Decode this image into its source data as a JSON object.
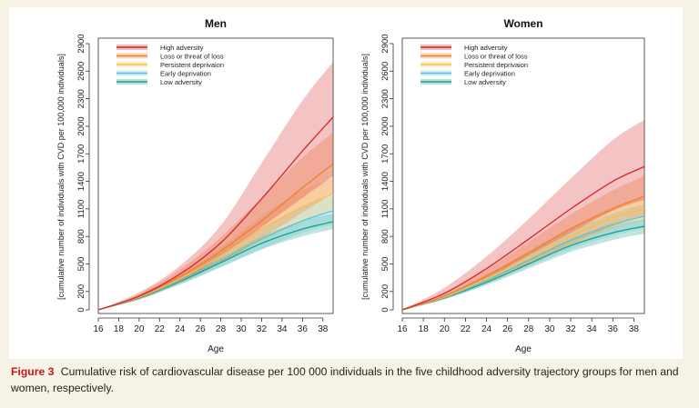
{
  "caption": {
    "label": "Figure 3",
    "text": "Cumulative risk of cardiovascular disease per 100 000 individuals in the five childhood adversity trajectory groups for men and women, respectively."
  },
  "series_colors": {
    "High adversity": "#d62728",
    "Loss or threat of loss": "#f07f2a",
    "Persistent deprivaion": "#f2c14e",
    "Early deprivation": "#5ec3d6",
    "Low adversity": "#19a08a"
  },
  "chart_data": [
    {
      "type": "line",
      "title": "Men",
      "xlabel": "Age",
      "ylabel": "[cumulative number of individuals with CVD per 100,000 individuals]",
      "xlim": [
        16,
        39
      ],
      "ylim": [
        0,
        2900
      ],
      "xticks": [
        16,
        18,
        20,
        22,
        24,
        26,
        28,
        30,
        32,
        34,
        36,
        38
      ],
      "yticks": [
        0,
        200,
        500,
        800,
        1100,
        1400,
        1700,
        2000,
        2300,
        2600,
        2900
      ],
      "legend_position": "top-left",
      "x": [
        16,
        20,
        24,
        28,
        32,
        36,
        39
      ],
      "series": [
        {
          "name": "High adversity",
          "values": [
            0,
            150,
            390,
            730,
            1210,
            1730,
            2100
          ],
          "lower": [
            0,
            120,
            310,
            580,
            900,
            1220,
            1460
          ],
          "upper": [
            0,
            190,
            480,
            920,
            1600,
            2280,
            2700
          ]
        },
        {
          "name": "Loss or threat of loss",
          "values": [
            0,
            145,
            360,
            640,
            970,
            1330,
            1590
          ],
          "lower": [
            0,
            110,
            290,
            510,
            780,
            1060,
            1270
          ],
          "upper": [
            0,
            175,
            440,
            790,
            1220,
            1660,
            1930
          ]
        },
        {
          "name": "Persistent deprivaion",
          "values": [
            0,
            140,
            340,
            590,
            880,
            1120,
            1260
          ],
          "lower": [
            0,
            120,
            300,
            510,
            750,
            960,
            1090
          ],
          "upper": [
            0,
            165,
            390,
            680,
            1020,
            1300,
            1430
          ]
        },
        {
          "name": "Early deprivation",
          "values": [
            0,
            135,
            320,
            540,
            770,
            970,
            1080
          ],
          "lower": [
            0,
            115,
            275,
            465,
            660,
            840,
            930
          ],
          "upper": [
            0,
            155,
            365,
            620,
            890,
            1120,
            1240
          ]
        },
        {
          "name": "Low adversity",
          "values": [
            0,
            130,
            310,
            515,
            725,
            880,
            960
          ],
          "lower": [
            0,
            115,
            280,
            465,
            660,
            800,
            880
          ],
          "upper": [
            0,
            145,
            340,
            565,
            800,
            970,
            1050
          ]
        }
      ]
    },
    {
      "type": "line",
      "title": "Women",
      "xlabel": "Age",
      "ylabel": "[cumulative number of individuals with CVD per 100,000 individuals]",
      "xlim": [
        16,
        39
      ],
      "ylim": [
        0,
        2900
      ],
      "xticks": [
        16,
        18,
        20,
        22,
        24,
        26,
        28,
        30,
        32,
        34,
        36,
        38
      ],
      "yticks": [
        0,
        200,
        500,
        800,
        1100,
        1400,
        1700,
        2000,
        2300,
        2600,
        2900
      ],
      "legend_position": "top-left",
      "x": [
        16,
        20,
        24,
        28,
        32,
        36,
        39
      ],
      "series": [
        {
          "name": "High adversity",
          "values": [
            0,
            180,
            450,
            770,
            1100,
            1400,
            1560
          ],
          "lower": [
            0,
            130,
            340,
            590,
            840,
            1080,
            1200
          ],
          "upper": [
            0,
            240,
            580,
            990,
            1430,
            1850,
            2070
          ]
        },
        {
          "name": "Loss or threat of loss",
          "values": [
            0,
            150,
            370,
            620,
            880,
            1100,
            1240
          ],
          "lower": [
            0,
            120,
            300,
            510,
            720,
            910,
            1030
          ],
          "upper": [
            0,
            180,
            440,
            740,
            1040,
            1300,
            1460
          ]
        },
        {
          "name": "Persistent deprivaion",
          "values": [
            0,
            140,
            340,
            570,
            800,
            1000,
            1100
          ],
          "lower": [
            0,
            120,
            300,
            500,
            700,
            880,
            970
          ],
          "upper": [
            0,
            160,
            380,
            640,
            900,
            1120,
            1230
          ]
        },
        {
          "name": "Early deprivation",
          "values": [
            0,
            135,
            320,
            540,
            760,
            930,
            1020
          ],
          "lower": [
            0,
            115,
            280,
            470,
            660,
            810,
            890
          ],
          "upper": [
            0,
            155,
            360,
            610,
            860,
            1050,
            1150
          ]
        },
        {
          "name": "Low adversity",
          "values": [
            0,
            130,
            300,
            500,
            700,
            840,
            910
          ],
          "lower": [
            0,
            115,
            270,
            450,
            630,
            760,
            830
          ],
          "upper": [
            0,
            145,
            330,
            550,
            770,
            920,
            990
          ]
        }
      ]
    }
  ]
}
